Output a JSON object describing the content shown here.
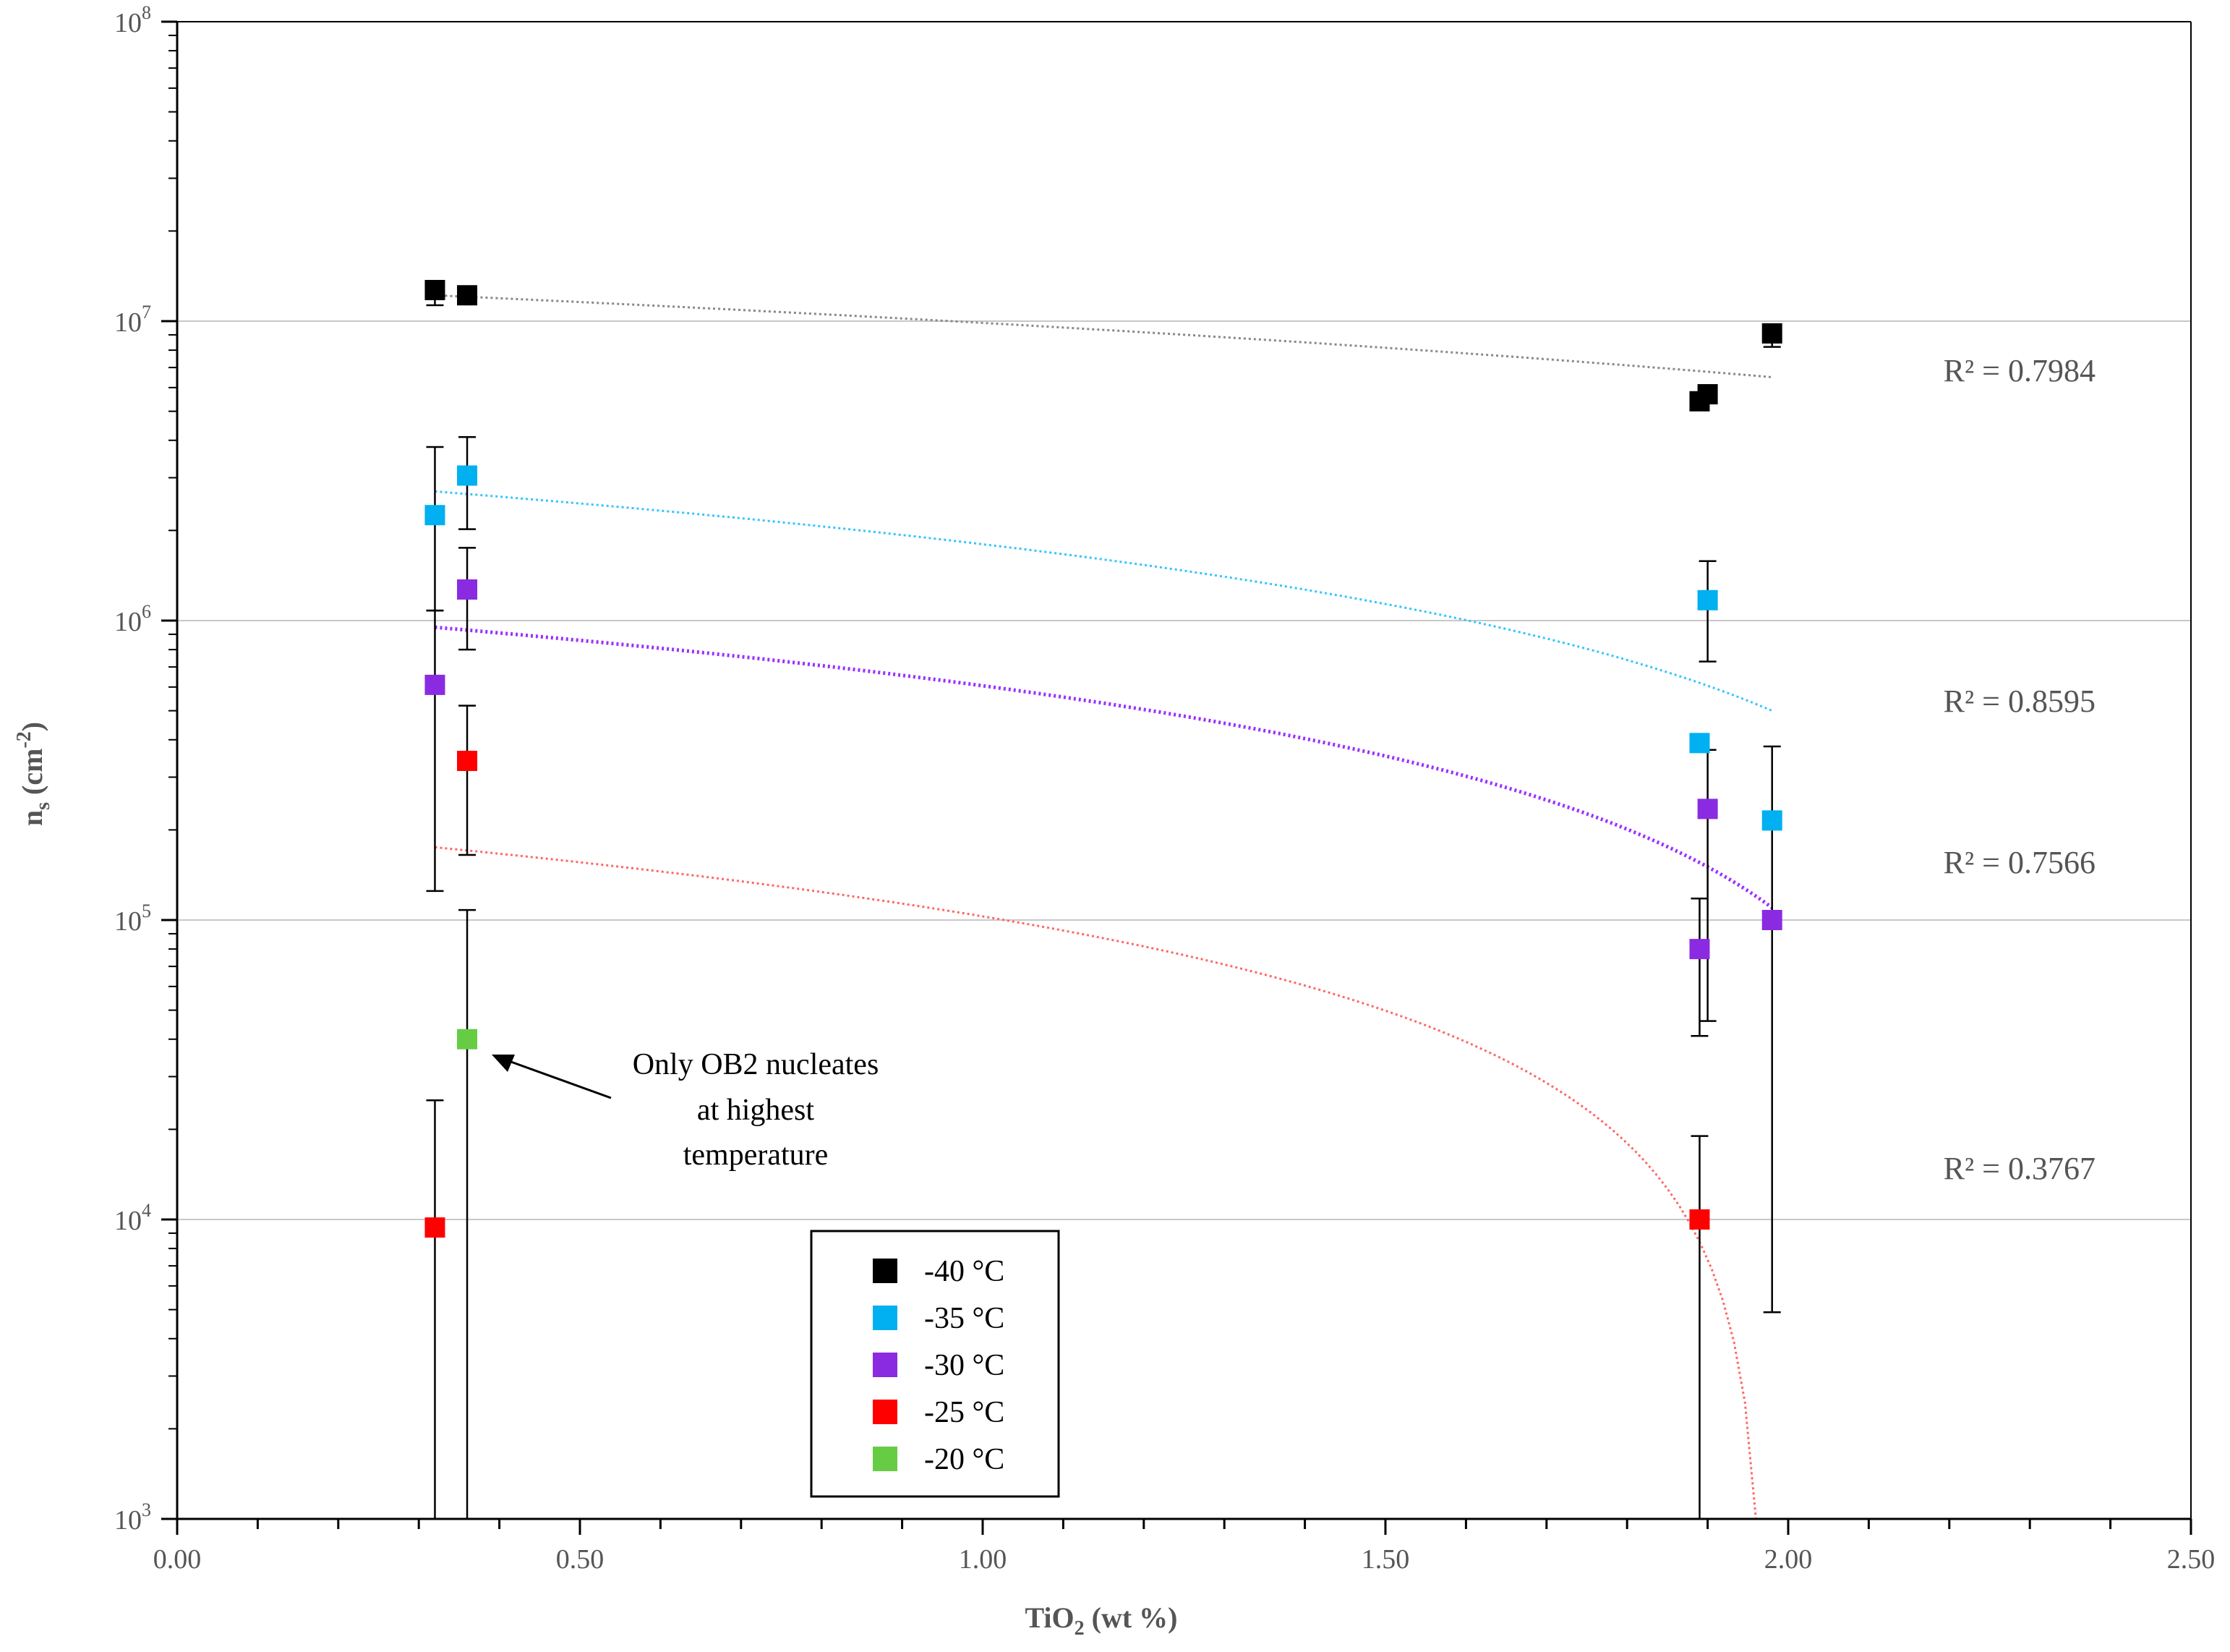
{
  "chart_data": {
    "type": "scatter",
    "title": "",
    "xlabel": {
      "main": "TiO",
      "sub": "2",
      "rest": " (wt %)"
    },
    "ylabel": {
      "main": "n",
      "sub": "s",
      "rest": " (cm",
      "sup": "-2",
      "end": ")"
    },
    "xlim": [
      0,
      2.5
    ],
    "ylim": [
      1000,
      100000000
    ],
    "yscale": "log",
    "x_ticks": [
      "0.00",
      "0.50",
      "1.00",
      "1.50",
      "2.00",
      "2.50"
    ],
    "y_ticks": [
      {
        "base": "10",
        "exp": "3",
        "value": 1000
      },
      {
        "base": "10",
        "exp": "4",
        "value": 10000
      },
      {
        "base": "10",
        "exp": "5",
        "value": 100000
      },
      {
        "base": "10",
        "exp": "6",
        "value": 1000000
      },
      {
        "base": "10",
        "exp": "7",
        "value": 10000000
      },
      {
        "base": "10",
        "exp": "8",
        "value": 100000000
      }
    ],
    "grid": "horizontal at each decade",
    "legend_position": "bottom-left",
    "series": [
      {
        "name": "-40 °C",
        "color": "#000000",
        "points": [
          {
            "x": 0.32,
            "y": 12700000,
            "err_low": 11300000,
            "err_high": 13200000
          },
          {
            "x": 0.36,
            "y": 12200000
          },
          {
            "x": 1.89,
            "y": 5400000
          },
          {
            "x": 1.9,
            "y": 5700000
          },
          {
            "x": 1.98,
            "y": 9100000,
            "err_low": 8200000,
            "err_high": 9500000
          }
        ],
        "trend": {
          "color": "#888888",
          "x": [
            0.32,
            1.98
          ],
          "y": [
            12200000,
            6500000
          ]
        },
        "r2": "R² = 0.7984"
      },
      {
        "name": "-35 °C",
        "color": "#00b0f0",
        "points": [
          {
            "x": 0.32,
            "y": 2250000,
            "err_low": 1080000,
            "err_high": 3800000
          },
          {
            "x": 0.36,
            "y": 3050000,
            "err_low": 2020000,
            "err_high": 4100000
          },
          {
            "x": 1.89,
            "y": 390000
          },
          {
            "x": 1.9,
            "y": 1170000,
            "err_low": 730000,
            "err_high": 1580000
          },
          {
            "x": 1.98,
            "y": 215000
          }
        ],
        "trend": {
          "color": "#33c4ff",
          "x": [
            0.32,
            1.98
          ],
          "y": [
            2700000,
            500000
          ]
        },
        "r2": "R² = 0.8595"
      },
      {
        "name": "-30 °C",
        "color": "#8a2be2",
        "points": [
          {
            "x": 0.32,
            "y": 610000,
            "err_low": 125000,
            "err_high": 1080000
          },
          {
            "x": 0.36,
            "y": 1270000,
            "err_low": 800000,
            "err_high": 1750000
          },
          {
            "x": 1.89,
            "y": 80000,
            "err_low": 41000,
            "err_high": 118000
          },
          {
            "x": 1.9,
            "y": 235000,
            "err_low": 46000,
            "err_high": 370000
          },
          {
            "x": 1.98,
            "y": 100000,
            "err_low": 4900,
            "err_high": 380000
          }
        ],
        "trend": {
          "color": "#9b30ff",
          "x": [
            0.32,
            1.98
          ],
          "y": [
            950000,
            110000
          ]
        },
        "r2": "R² = 0.7566"
      },
      {
        "name": "-25 °C",
        "color": "#ff0000",
        "points": [
          {
            "x": 0.32,
            "y": 9400,
            "err_low": 1000,
            "err_high": 25000
          },
          {
            "x": 0.36,
            "y": 340000,
            "err_low": 165000,
            "err_high": 520000
          },
          {
            "x": 1.89,
            "y": 10000,
            "err_low": 1000,
            "err_high": 19000
          }
        ],
        "trend": {
          "color": "#ff6666",
          "x": [
            0.32,
            1.96
          ],
          "y": [
            175000,
            1000
          ]
        },
        "r2": "R² = 0.3767"
      },
      {
        "name": "-20 °C",
        "color": "#66cc44",
        "points": [
          {
            "x": 0.36,
            "y": 40000,
            "err_low": 1000,
            "err_high": 108000
          }
        ]
      }
    ],
    "annotation": {
      "lines": [
        "Only  OB2 nucleates",
        "at highest",
        "temperature"
      ],
      "points_to": {
        "x": 0.36,
        "y": 40000
      }
    }
  }
}
